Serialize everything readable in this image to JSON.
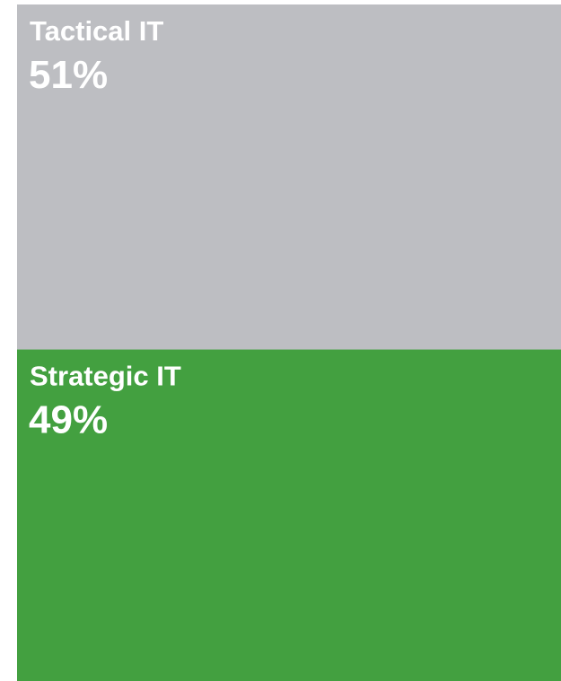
{
  "chart_data": {
    "type": "treemap",
    "categories": [
      "Tactical IT",
      "Strategic IT"
    ],
    "values": [
      51,
      49
    ],
    "value_labels": [
      "51%",
      "49%"
    ],
    "colors": [
      "#bdbec2",
      "#43a040"
    ]
  }
}
